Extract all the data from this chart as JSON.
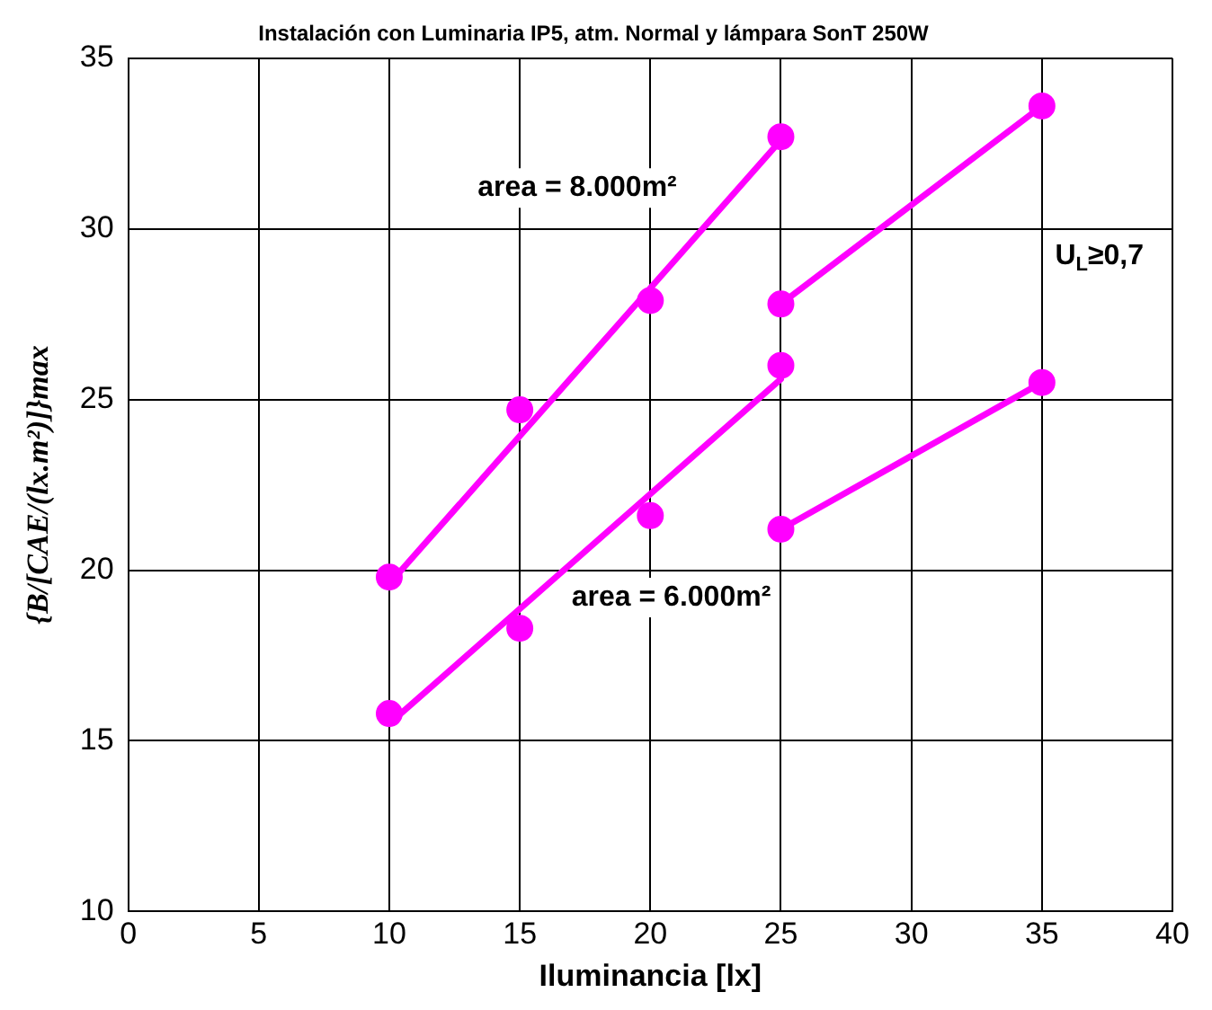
{
  "chart_data": {
    "type": "scatter",
    "title": "Instalación con Luminaria IP5, atm. Normal y lámpara SonT 250W",
    "xlabel": "Iluminancia [lx]",
    "ylabel": "{B/[CAE/(lx.m²)]}max",
    "series": [
      {
        "color": "#ff00ff",
        "marker": "circle",
        "x": [
          10,
          15,
          20,
          25
        ],
        "values": [
          19.8,
          24.7,
          27.9,
          32.7
        ]
      },
      {
        "color": "#ff00ff",
        "marker": "circle",
        "x": [
          10,
          15,
          20,
          25
        ],
        "values": [
          15.8,
          18.3,
          21.6,
          26.0
        ]
      },
      {
        "color": "#ff00ff",
        "marker": "circle",
        "x": [
          25,
          35
        ],
        "values": [
          27.8,
          33.6
        ]
      },
      {
        "color": "#ff00ff",
        "marker": "circle",
        "x": [
          25,
          35
        ],
        "values": [
          21.2,
          25.5
        ]
      },
      {
        "type": "line",
        "color": "#ff00ff",
        "marker": "none",
        "x": [
          10,
          25
        ],
        "values": [
          19.6,
          32.6
        ]
      },
      {
        "type": "line",
        "color": "#ff00ff",
        "marker": "none",
        "x": [
          10,
          25
        ],
        "values": [
          15.5,
          25.6
        ]
      },
      {
        "type": "line",
        "color": "#ff00ff",
        "marker": "none",
        "x": [
          25,
          35
        ],
        "values": [
          27.8,
          33.6
        ]
      },
      {
        "type": "line",
        "color": "#ff00ff",
        "marker": "none",
        "x": [
          25,
          35
        ],
        "values": [
          21.2,
          25.5
        ]
      }
    ],
    "annotations": [
      "area = 8.000m²",
      "area = 6.000m²",
      "U$_{L}$≥0,7"
    ],
    "xlim": [
      0,
      40
    ],
    "xticks": [
      0,
      5,
      10,
      15,
      20,
      25,
      30,
      35,
      40
    ],
    "ylim": [
      10,
      35
    ],
    "yticks": [
      10,
      15,
      20,
      25,
      30,
      35
    ],
    "grid": true,
    "legend": false
  }
}
